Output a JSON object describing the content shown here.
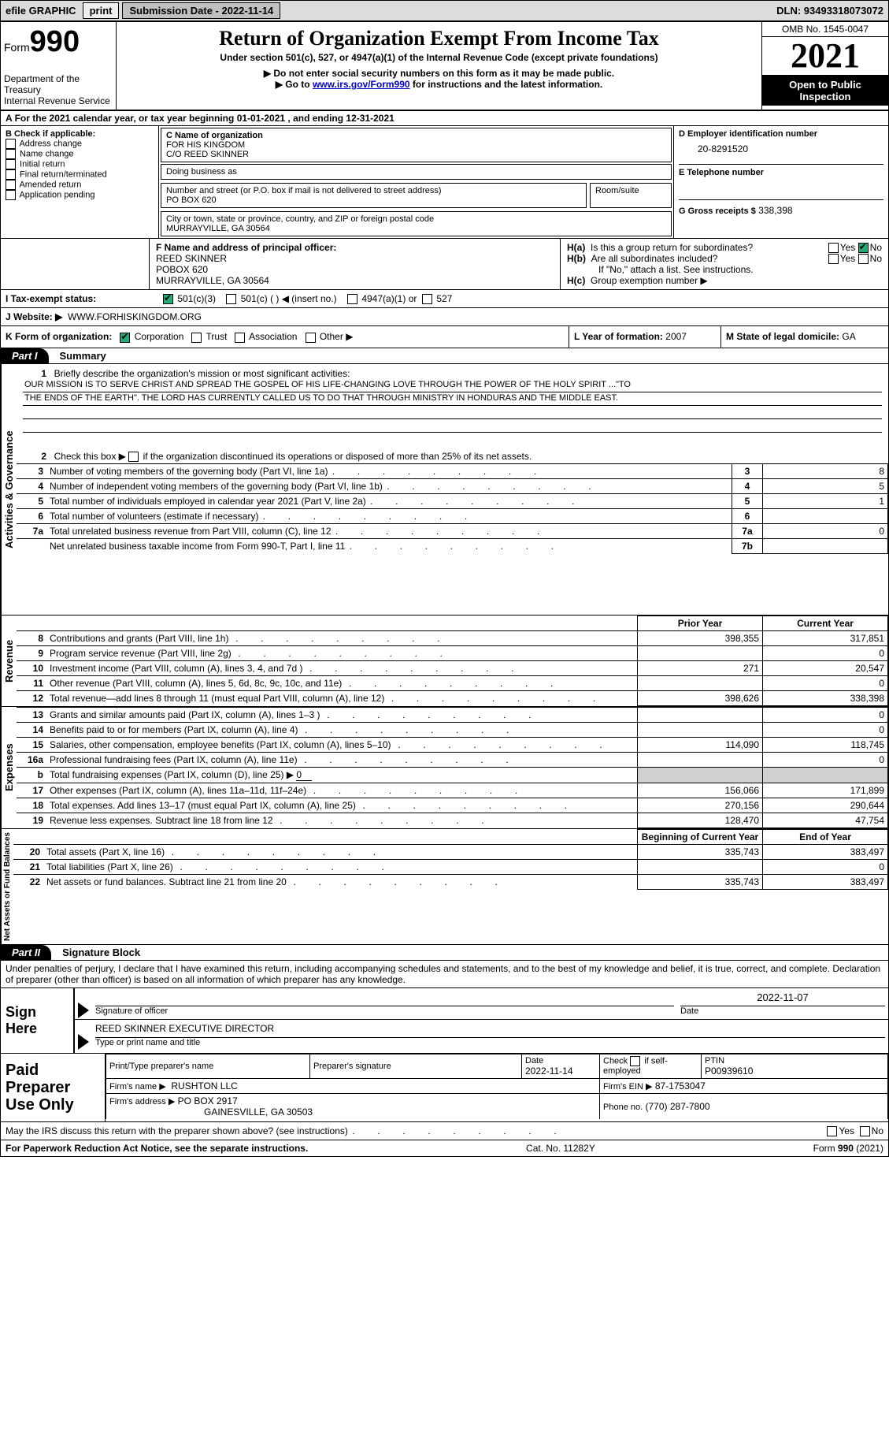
{
  "topbar": {
    "efile": "efile GRAPHIC",
    "print": "print",
    "sub_label": "Submission Date - 2022-11-14",
    "dln_label": "DLN: 93493318073072"
  },
  "header": {
    "form_prefix": "Form",
    "form_number": "990",
    "dept": "Department of the Treasury",
    "irs": "Internal Revenue Service",
    "title": "Return of Organization Exempt From Income Tax",
    "subtitle": "Under section 501(c), 527, or 4947(a)(1) of the Internal Revenue Code (except private foundations)",
    "note1": "▶ Do not enter social security numbers on this form as it may be made public.",
    "note2_pre": "▶ Go to ",
    "note2_link": "www.irs.gov/Form990",
    "note2_post": " for instructions and the latest information.",
    "omb": "OMB No. 1545-0047",
    "year": "2021",
    "open": "Open to Public Inspection"
  },
  "lineA": {
    "text_pre": "For the 2021 calendar year, or tax year beginning ",
    "begin": "01-01-2021",
    "mid": "   , and ending ",
    "end": "12-31-2021"
  },
  "boxB": {
    "title": "B Check if applicable:",
    "items": [
      "Address change",
      "Name change",
      "Initial return",
      "Final return/terminated",
      "Amended return",
      "Application pending"
    ]
  },
  "boxC": {
    "name_label": "C Name of organization",
    "name1": "FOR HIS KINGDOM",
    "name2": "C/O REED SKINNER",
    "dba_label": "Doing business as",
    "street_label": "Number and street (or P.O. box if mail is not delivered to street address)",
    "room_label": "Room/suite",
    "street": "PO BOX 620",
    "city_label": "City or town, state or province, country, and ZIP or foreign postal code",
    "city": "MURRAYVILLE, GA  30564"
  },
  "boxD": {
    "label": "D Employer identification number",
    "value": "20-8291520"
  },
  "boxE": {
    "label": "E Telephone number",
    "value": ""
  },
  "boxG": {
    "label": "G Gross receipts $",
    "value": "338,398"
  },
  "boxF": {
    "label": "F  Name and address of principal officer:",
    "name": "REED SKINNER",
    "addr1": "POBOX 620",
    "addr2": "MURRAYVILLE, GA  30564"
  },
  "boxH": {
    "a_label": "H(a)  Is this a group return for subordinates?",
    "b_label": "H(b)  Are all subordinates included?",
    "b_note": "If \"No,\" attach a list. See instructions.",
    "c_label": "H(c)  Group exemption number ▶",
    "yes": "Yes",
    "no": "No"
  },
  "boxI": {
    "label": "I   Tax-exempt status:",
    "o1": "501(c)(3)",
    "o2": "501(c) (  ) ◀ (insert no.)",
    "o3": "4947(a)(1) or",
    "o4": "527"
  },
  "boxJ": {
    "label": "J   Website: ▶",
    "value": "WWW.FORHISKINGDOM.ORG"
  },
  "boxK": {
    "label": "K Form of organization:",
    "o1": "Corporation",
    "o2": "Trust",
    "o3": "Association",
    "o4": "Other ▶"
  },
  "boxL": {
    "label": "L Year of formation:",
    "value": "2007"
  },
  "boxM": {
    "label": "M State of legal domicile:",
    "value": "GA"
  },
  "part1": {
    "tag": "Part I",
    "title": "Summary",
    "line1_label": "Briefly describe the organization's mission or most significant activities:",
    "mission1": "OUR MISSION IS TO SERVE CHRIST AND SPREAD THE GOSPEL OF HIS LIFE-CHANGING LOVE THROUGH THE POWER OF THE HOLY SPIRIT ...\"TO",
    "mission2": "THE ENDS OF THE EARTH\". THE LORD HAS CURRENTLY CALLED US TO DO THAT THROUGH MINISTRY IN HONDURAS AND THE MIDDLE EAST.",
    "line2": "Check this box ▶        if the organization discontinued its operations or disposed of more than 25% of its net assets.",
    "rows_a": [
      {
        "n": "3",
        "t": "Number of voting members of the governing body (Part VI, line 1a)",
        "box": "3",
        "v": "8"
      },
      {
        "n": "4",
        "t": "Number of independent voting members of the governing body (Part VI, line 1b)",
        "box": "4",
        "v": "5"
      },
      {
        "n": "5",
        "t": "Total number of individuals employed in calendar year 2021 (Part V, line 2a)",
        "box": "5",
        "v": "1"
      },
      {
        "n": "6",
        "t": "Total number of volunteers (estimate if necessary)",
        "box": "6",
        "v": ""
      },
      {
        "n": "7a",
        "t": "Total unrelated business revenue from Part VIII, column (C), line 12",
        "box": "7a",
        "v": "0"
      },
      {
        "n": "",
        "t": "Net unrelated business taxable income from Form 990-T, Part I, line 11",
        "box": "7b",
        "v": ""
      }
    ],
    "prior_hdr": "Prior Year",
    "current_hdr": "Current Year",
    "revenue": [
      {
        "n": "8",
        "t": "Contributions and grants (Part VIII, line 1h)",
        "p": "398,355",
        "c": "317,851"
      },
      {
        "n": "9",
        "t": "Program service revenue (Part VIII, line 2g)",
        "p": "",
        "c": "0"
      },
      {
        "n": "10",
        "t": "Investment income (Part VIII, column (A), lines 3, 4, and 7d )",
        "p": "271",
        "c": "20,547"
      },
      {
        "n": "11",
        "t": "Other revenue (Part VIII, column (A), lines 5, 6d, 8c, 9c, 10c, and 11e)",
        "p": "",
        "c": "0"
      },
      {
        "n": "12",
        "t": "Total revenue—add lines 8 through 11 (must equal Part VIII, column (A), line 12)",
        "p": "398,626",
        "c": "338,398"
      }
    ],
    "expenses": [
      {
        "n": "13",
        "t": "Grants and similar amounts paid (Part IX, column (A), lines 1–3 )",
        "p": "",
        "c": "0"
      },
      {
        "n": "14",
        "t": "Benefits paid to or for members (Part IX, column (A), line 4)",
        "p": "",
        "c": "0"
      },
      {
        "n": "15",
        "t": "Salaries, other compensation, employee benefits (Part IX, column (A), lines 5–10)",
        "p": "114,090",
        "c": "118,745"
      },
      {
        "n": "16a",
        "t": "Professional fundraising fees (Part IX, column (A), line 11e)",
        "p": "",
        "c": "0"
      },
      {
        "n": "b",
        "t": "Total fundraising expenses (Part IX, column (D), line 25) ▶",
        "p": "GREY",
        "c": "GREY",
        "extra": "0"
      },
      {
        "n": "17",
        "t": "Other expenses (Part IX, column (A), lines 11a–11d, 11f–24e)",
        "p": "156,066",
        "c": "171,899"
      },
      {
        "n": "18",
        "t": "Total expenses. Add lines 13–17 (must equal Part IX, column (A), line 25)",
        "p": "270,156",
        "c": "290,644"
      },
      {
        "n": "19",
        "t": "Revenue less expenses. Subtract line 18 from line 12",
        "p": "128,470",
        "c": "47,754"
      }
    ],
    "na_hdr1": "Beginning of Current Year",
    "na_hdr2": "End of Year",
    "netassets": [
      {
        "n": "20",
        "t": "Total assets (Part X, line 16)",
        "p": "335,743",
        "c": "383,497"
      },
      {
        "n": "21",
        "t": "Total liabilities (Part X, line 26)",
        "p": "",
        "c": "0"
      },
      {
        "n": "22",
        "t": "Net assets or fund balances. Subtract line 21 from line 20",
        "p": "335,743",
        "c": "383,497"
      }
    ],
    "sides": {
      "act_gov": "Activities & Governance",
      "revenue": "Revenue",
      "expenses": "Expenses",
      "netassets": "Net Assets or Fund Balances"
    }
  },
  "part2": {
    "tag": "Part II",
    "title": "Signature Block",
    "penalty": "Under penalties of perjury, I declare that I have examined this return, including accompanying schedules and statements, and to the best of my knowledge and belief, it is true, correct, and complete. Declaration of preparer (other than officer) is based on all information of which preparer has any knowledge.",
    "sign_here": "Sign Here",
    "sig_officer": "Signature of officer",
    "sig_date": "2022-11-07",
    "date_label": "Date",
    "officer_name": "REED SKINNER  EXECUTIVE DIRECTOR",
    "type_name": "Type or print name and title",
    "paid": "Paid Preparer Use Only",
    "prep_name_label": "Print/Type preparer's name",
    "prep_sig_label": "Preparer's signature",
    "prep_date_label": "Date",
    "prep_date": "2022-11-14",
    "check_if": "Check         if self-employed",
    "ptin_label": "PTIN",
    "ptin": "P00939610",
    "firm_name_label": "Firm's name    ▶",
    "firm_name": "RUSHTON LLC",
    "firm_ein_label": "Firm's EIN ▶",
    "firm_ein": "87-1753047",
    "firm_addr_label": "Firm's address ▶",
    "firm_addr1": "PO BOX 2917",
    "firm_addr2": "GAINESVILLE, GA  30503",
    "phone_label": "Phone no.",
    "phone": "(770) 287-7800",
    "discuss": "May the IRS discuss this return with the preparer shown above? (see instructions)",
    "yes": "Yes",
    "no": "No"
  },
  "footer": {
    "left": "For Paperwork Reduction Act Notice, see the separate instructions.",
    "mid": "Cat. No. 11282Y",
    "right": "Form 990 (2021)"
  }
}
